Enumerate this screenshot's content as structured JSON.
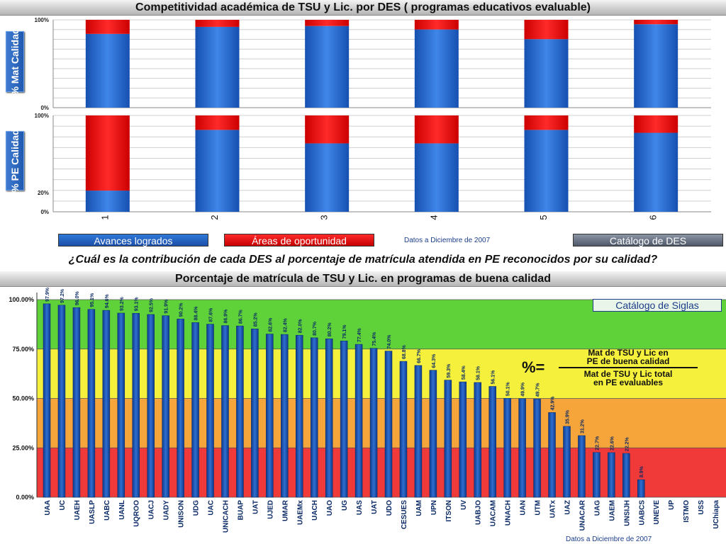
{
  "titles": {
    "top": "Competitividad académica de TSU y Lic. por DES ( programas educativos evaluable)",
    "question": "¿Cuál es la contribución de cada DES al porcentaje de matrícula atendida en PE reconocidos por su calidad?",
    "bottom": "Porcentaje de matrícula de TSU y Lic. en programas de buena calidad"
  },
  "legend": {
    "avances": "Avances logrados",
    "areas": "Áreas de oportunidad",
    "catalogo_des": "Catálogo de DES",
    "catalogo_siglas": "Catálogo de Siglas",
    "date_top": "Datos a Diciembre de 2007",
    "date_bottom": "Datos a Diciembre de 2007"
  },
  "formula": {
    "symbol": "%=",
    "numerator_1": "Mat de TSU y Lic en",
    "numerator_2": "PE de buena calidad",
    "denominator_1": "Mat de TSU y Lic total",
    "denominator_2": "en PE evaluables"
  },
  "colors": {
    "blue": "#1f5fc4",
    "red": "#e51010",
    "band_green": "#5fd23a",
    "band_yellow": "#f5f03c",
    "band_orange": "#f5a53a",
    "band_red": "#f03a3a",
    "bar_dark": "#0f3a8a"
  },
  "chart_data": [
    {
      "type": "bar",
      "stacked": true,
      "ylabel": "% Mat Calidad",
      "yticks": [
        "0%",
        "100%"
      ],
      "ylim": [
        0,
        100
      ],
      "categories": [
        "1",
        "2",
        "3",
        "4",
        "5",
        "6"
      ],
      "series": [
        {
          "name": "Avances logrados",
          "values": [
            84,
            92,
            93,
            89,
            78,
            95
          ]
        },
        {
          "name": "Áreas de oportunidad",
          "values": [
            16,
            8,
            7,
            11,
            22,
            5
          ]
        }
      ]
    },
    {
      "type": "bar",
      "stacked": true,
      "ylabel": "% PE Calidad",
      "yticks": [
        "0%",
        "20%",
        "100%"
      ],
      "ylim": [
        0,
        100
      ],
      "categories": [
        "1",
        "2",
        "3",
        "4",
        "5",
        "6"
      ],
      "series": [
        {
          "name": "Avances logrados",
          "values": [
            22,
            85,
            71,
            71,
            85,
            82
          ]
        },
        {
          "name": "Áreas de oportunidad",
          "values": [
            78,
            15,
            29,
            29,
            15,
            18
          ]
        }
      ]
    },
    {
      "type": "bar",
      "ylim": [
        0,
        100
      ],
      "yticks": [
        "0.00%",
        "25.00%",
        "50.00%",
        "75.00%",
        "100.00%"
      ],
      "categories": [
        "UAA",
        "UC",
        "UAEH",
        "UASLP",
        "UABC",
        "UANL",
        "UQROO",
        "UACJ",
        "UADY",
        "UNISON",
        "UDG",
        "UAC",
        "UNICACH",
        "BUAP",
        "UAT",
        "UJED",
        "UMAR",
        "UAEMx",
        "UACH",
        "UAO",
        "UG",
        "UAS",
        "UAT",
        "UDO",
        "CESUES",
        "UAM",
        "UPN",
        "ITSON",
        "UV",
        "UABJO",
        "UACAM",
        "UNACH",
        "UAN",
        "UTM",
        "UATx",
        "UAZ",
        "UNACAR",
        "UAG",
        "UAEM",
        "UNSIJH",
        "UABCS",
        "UNEVE",
        "UP",
        "ISTMO",
        "USS",
        "UChiapa"
      ],
      "values": [
        97.9,
        97.2,
        96.0,
        95.1,
        94.6,
        93.2,
        93.1,
        92.5,
        91.9,
        90.2,
        88.4,
        87.6,
        86.9,
        86.7,
        85.2,
        82.6,
        82.4,
        82.0,
        80.7,
        80.2,
        79.1,
        77.4,
        75.4,
        74.0,
        68.8,
        66.7,
        64.3,
        59.3,
        58.4,
        58.1,
        56.1,
        50.1,
        49.9,
        49.7,
        42.9,
        35.9,
        31.2,
        22.7,
        22.6,
        22.2,
        8.9,
        0,
        0,
        0,
        0,
        0
      ],
      "value_labels": [
        "97.9%",
        "97.2%",
        "96.0%",
        "95.1%",
        "94.6%",
        "93.2%",
        "93.1%",
        "92.5%",
        "91.9%",
        "90.2%",
        "88.4%",
        "87.6%",
        "86.9%",
        "86.7%",
        "85.2%",
        "82.6%",
        "82.4%",
        "82.0%",
        "80.7%",
        "80.2%",
        "79.1%",
        "77.4%",
        "75.4%",
        "74.0%",
        "68.8%",
        "66.7%",
        "64.3%",
        "59.3%",
        "58.4%",
        "58.1%",
        "56.1%",
        "50.1%",
        "49.9%",
        "49.7%",
        "42.9%",
        "35.9%",
        "31.2%",
        "22.7%",
        "22.6%",
        "22.2%",
        "8.9%",
        "",
        "",
        "",
        "",
        ""
      ]
    }
  ]
}
